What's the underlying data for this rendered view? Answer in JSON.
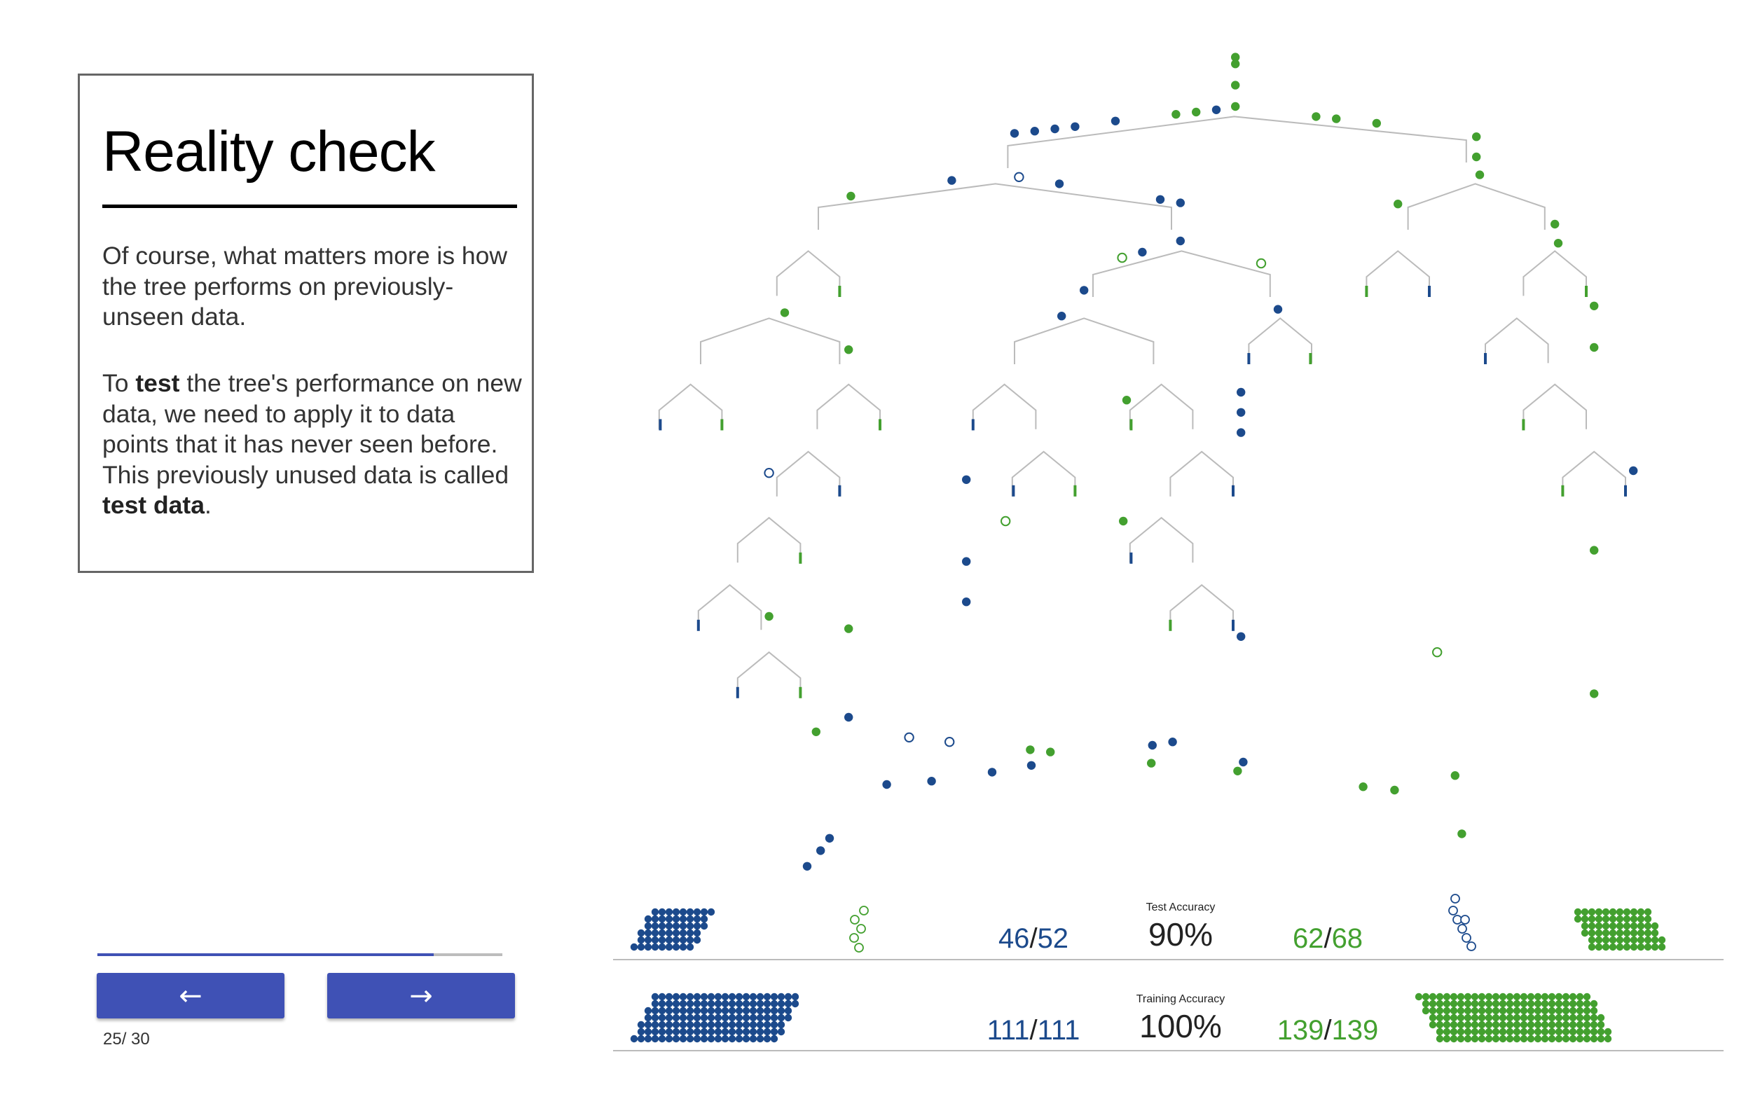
{
  "slide": {
    "title": "Reality check",
    "para1": "Of course, what matters more is how the tree performs on previously-unseen data.",
    "para2_parts": [
      "To ",
      "test",
      " the tree's performance on new data, we need to apply it to data points that it has never seen before. This previously unused data is called ",
      "test data",
      "."
    ]
  },
  "navigation": {
    "prev_icon": "arrow-left-icon",
    "prev_symbol": "←",
    "next_icon": "arrow-right-icon",
    "next_symbol": "→",
    "current": "25",
    "separator": "/ ",
    "total": "30",
    "progress_fraction": 0.83
  },
  "colors": {
    "blue": "#1c4a8c",
    "green": "#43a02f",
    "accent": "#3f51b5",
    "branch": "#bbbbbb"
  },
  "metrics": {
    "test": {
      "label": "Test Accuracy",
      "value": "90%",
      "blue_correct": "46",
      "blue_total": "52",
      "green_correct": "62",
      "green_total": "68",
      "slash": "/"
    },
    "training": {
      "label": "Training Accuracy",
      "value": "100%",
      "blue_correct": "111",
      "blue_total": "111",
      "green_correct": "139",
      "green_total": "139",
      "slash": "/"
    }
  }
}
